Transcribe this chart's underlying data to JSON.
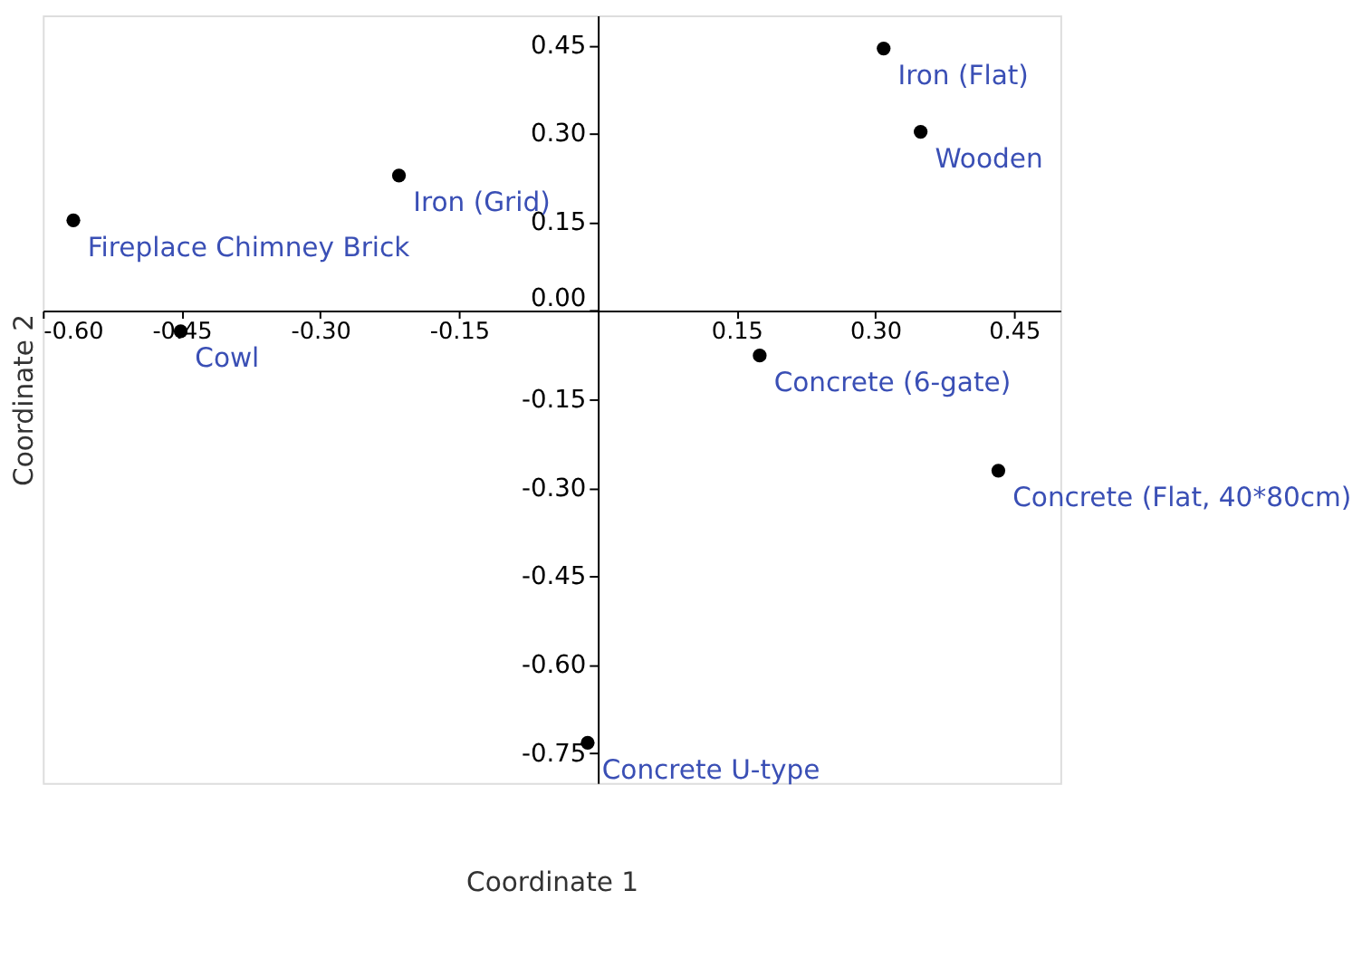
{
  "chart_data": {
    "type": "scatter",
    "xlabel": "Coordinate 1",
    "ylabel": "Coordinate 2",
    "x": [
      0.309,
      0.349,
      -0.215,
      -0.567,
      -0.451,
      0.175,
      0.433,
      -0.011
    ],
    "series": [
      {
        "color": "#000000",
        "values": [
          0.444,
          0.303,
          0.229,
          0.153,
          -0.035,
          -0.076,
          -0.271,
          -0.732
        ]
      }
    ],
    "annotations": [
      {
        "text": "Iron (Flat)",
        "x": 0.309,
        "y": 0.444
      },
      {
        "text": "Wooden",
        "x": 0.349,
        "y": 0.303
      },
      {
        "text": "Iron (Grid)",
        "x": -0.215,
        "y": 0.229
      },
      {
        "text": "Fireplace Chimney Brick",
        "x": -0.567,
        "y": 0.153
      },
      {
        "text": "Cowl",
        "x": -0.451,
        "y": -0.035
      },
      {
        "text": "Concrete (6-gate)",
        "x": 0.175,
        "y": -0.076
      },
      {
        "text": "Concrete (Flat, 40*80cm)",
        "x": 0.433,
        "y": -0.271
      },
      {
        "text": "Concrete U-type",
        "x": -0.011,
        "y": -0.732
      }
    ],
    "xlim": [
      -0.6,
      0.5
    ],
    "ylim": [
      -0.8,
      0.5
    ],
    "xticks": [
      {
        "value": -0.6,
        "label": "-0.60"
      },
      {
        "value": -0.45,
        "label": "-0.45"
      },
      {
        "value": -0.3,
        "label": "-0.30"
      },
      {
        "value": -0.15,
        "label": "-0.15"
      },
      {
        "value": 0.15,
        "label": "0.15"
      },
      {
        "value": 0.3,
        "label": "0.30"
      },
      {
        "value": 0.45,
        "label": "0.45"
      }
    ],
    "yticks": [
      {
        "value": 0.45,
        "label": "0.45"
      },
      {
        "value": 0.3,
        "label": "0.30"
      },
      {
        "value": 0.15,
        "label": "0.15"
      },
      {
        "value": 0,
        "label": "0.00"
      },
      {
        "value": -0.15,
        "label": "-0.15"
      },
      {
        "value": -0.3,
        "label": "-0.30"
      },
      {
        "value": -0.45,
        "label": "-0.45"
      },
      {
        "value": -0.6,
        "label": "-0.60"
      },
      {
        "value": -0.75,
        "label": "-0.75"
      }
    ],
    "marker": "circle",
    "grid": false
  }
}
